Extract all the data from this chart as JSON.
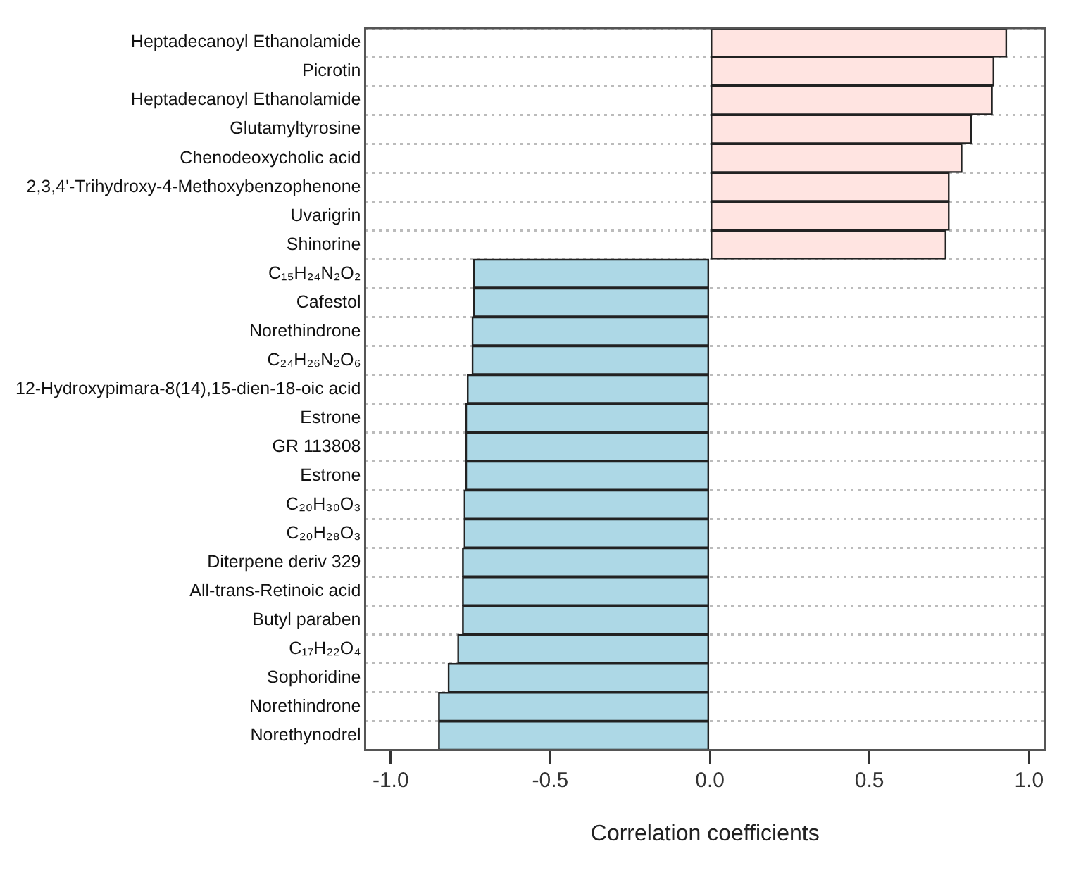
{
  "chart_data": {
    "type": "bar",
    "orientation": "horizontal",
    "xlabel": "Correlation coefficients",
    "categories": [
      "Heptadecanoyl Ethanolamide",
      "Picrotin",
      "Heptadecanoyl Ethanolamide",
      "Glutamyltyrosine",
      "Chenodeoxycholic acid",
      "2,3,4'-Trihydroxy-4-Methoxybenzophenone",
      "Uvarigrin",
      "Shinorine",
      "C₁₅H₂₄N₂O₂",
      "Cafestol",
      "Norethindrone",
      "C₂₄H₂₆N₂O₆",
      "12-Hydroxypimara-8(14),15-dien-18-oic acid",
      "Estrone",
      "GR 113808",
      "Estrone",
      "C₂₀H₃₀O₃",
      "C₂₀H₂₈O₃",
      "Diterpene deriv 329",
      "All-trans-Retinoic acid",
      "Butyl paraben",
      "C₁₇H₂₂O₄",
      "Sophoridine",
      "Norethindrone",
      "Norethynodrel"
    ],
    "values": [
      0.93,
      0.89,
      0.885,
      0.82,
      0.79,
      0.75,
      0.75,
      0.74,
      -0.74,
      -0.74,
      -0.745,
      -0.745,
      -0.76,
      -0.765,
      -0.765,
      -0.765,
      -0.77,
      -0.77,
      -0.775,
      -0.775,
      -0.775,
      -0.79,
      -0.82,
      -0.85,
      -0.85
    ],
    "colors": [
      "#ffe4e1",
      "#ffe4e1",
      "#ffe4e1",
      "#ffe4e1",
      "#ffe4e1",
      "#ffe4e1",
      "#ffe4e1",
      "#ffe4e1",
      "#add8e6",
      "#add8e6",
      "#add8e6",
      "#add8e6",
      "#add8e6",
      "#add8e6",
      "#add8e6",
      "#add8e6",
      "#add8e6",
      "#add8e6",
      "#add8e6",
      "#add8e6",
      "#add8e6",
      "#add8e6",
      "#add8e6",
      "#add8e6",
      "#add8e6"
    ],
    "xlim": [
      -1.08,
      1.05
    ],
    "xticks": [
      {
        "value": -1,
        "label": "-1.0"
      },
      {
        "value": -0.5,
        "label": "-0.5"
      },
      {
        "value": 0,
        "label": "0.0"
      },
      {
        "value": 0.5,
        "label": "0.5"
      },
      {
        "value": 1,
        "label": "1.0"
      }
    ],
    "grid": "y",
    "legend": false
  }
}
